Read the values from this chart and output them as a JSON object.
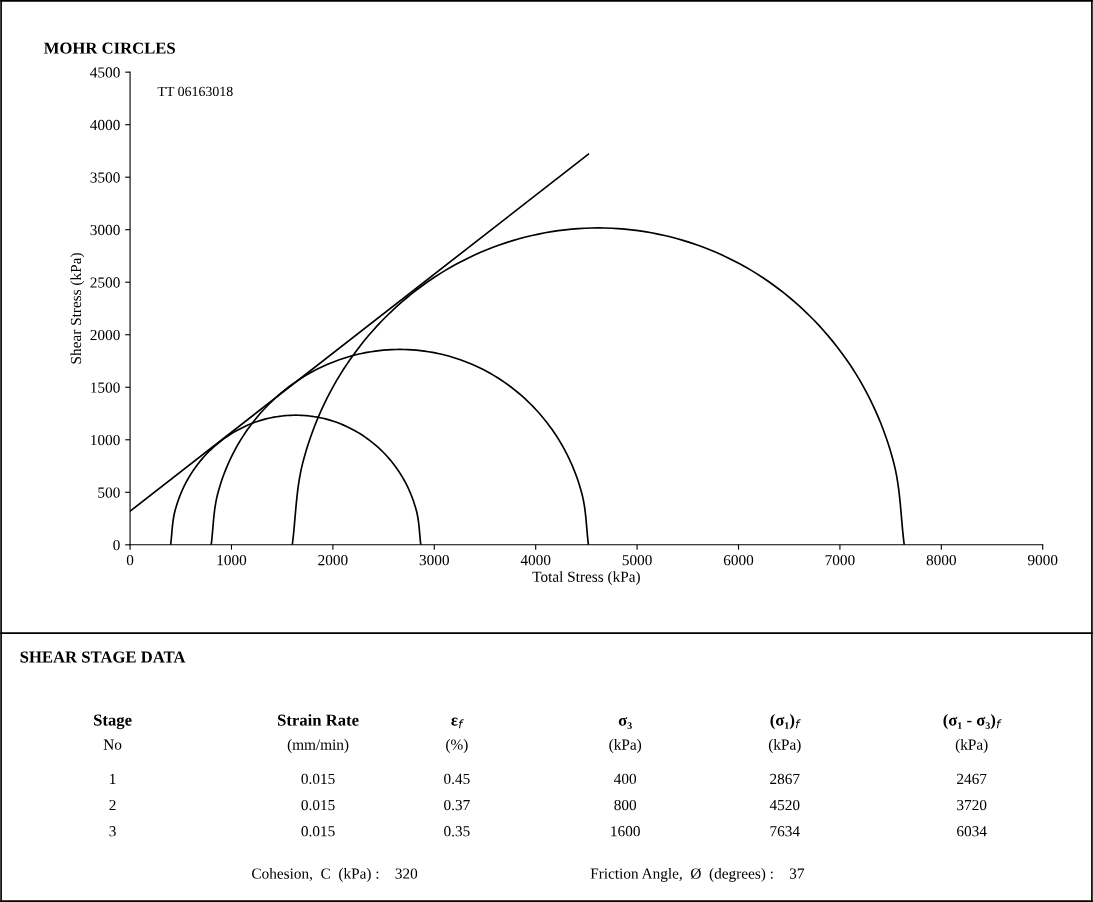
{
  "chart_data": {
    "type": "line",
    "title": "MOHR CIRCLES",
    "xlabel": "Total Stress (kPa)",
    "ylabel": "Shear Stress (kPa)",
    "xlim": [
      0,
      9000
    ],
    "xticks": [
      0,
      1000,
      2000,
      3000,
      4000,
      5000,
      6000,
      7000,
      8000,
      9000
    ],
    "ylim": [
      0,
      4500
    ],
    "yticks": [
      0,
      500,
      1000,
      1500,
      2000,
      2500,
      3000,
      3500,
      4000,
      4500
    ],
    "grid": false,
    "legend": false,
    "marker": "none",
    "line_style": "solid",
    "series": [
      {
        "color": "#000000",
        "x": [
          400,
          442,
          565,
          761,
          1017,
          1314,
          1634,
          1953,
          2250,
          2506,
          2702,
          2825,
          2867
        ],
        "values": [
          0,
          319,
          617,
          872,
          1068,
          1192,
          1234,
          1192,
          1068,
          872,
          617,
          319,
          0
        ]
      },
      {
        "color": "#000000",
        "x": [
          800,
          863,
          1049,
          1345,
          1730,
          2179,
          2660,
          3141,
          3590,
          3975,
          4271,
          4457,
          4520
        ],
        "values": [
          0,
          481,
          930,
          1315,
          1611,
          1797,
          1860,
          1797,
          1611,
          1315,
          930,
          481,
          0
        ]
      },
      {
        "color": "#000000",
        "x": [
          1600,
          1703,
          2004,
          2484,
          3109,
          3836,
          4617,
          5398,
          6126,
          6750,
          7230,
          7531,
          7634
        ],
        "values": [
          0,
          781,
          1509,
          2133,
          2613,
          2914,
          3017,
          2914,
          2613,
          2133,
          1509,
          781,
          0
        ]
      },
      {
        "color": "#000000",
        "x": [
          0,
          4520
        ],
        "values": [
          320,
          3720
        ]
      }
    ],
    "annotations": [
      "TT 06163018",
      "SHEAR STAGE DATA",
      "Stage",
      "Strain Rate",
      "ε$_{f}$",
      "σ₃",
      "(σ₁)$_{f}$",
      "(σ₁ - σ₃)$_{f}$",
      "No",
      "(mm/min)",
      "(%)",
      "(kPa)",
      "(kPa)",
      "(kPa)",
      "1",
      "0.015",
      "0.45",
      "400",
      "2867",
      "2467",
      "2",
      "0.015",
      "0.37",
      "800",
      "4520",
      "3720",
      "3",
      "0.015",
      "0.35",
      "1600",
      "7634",
      "6034",
      "Cohesion,  C  (kPa) :    320",
      "Friction Angle,  Ø  (degrees) :    37"
    ]
  }
}
